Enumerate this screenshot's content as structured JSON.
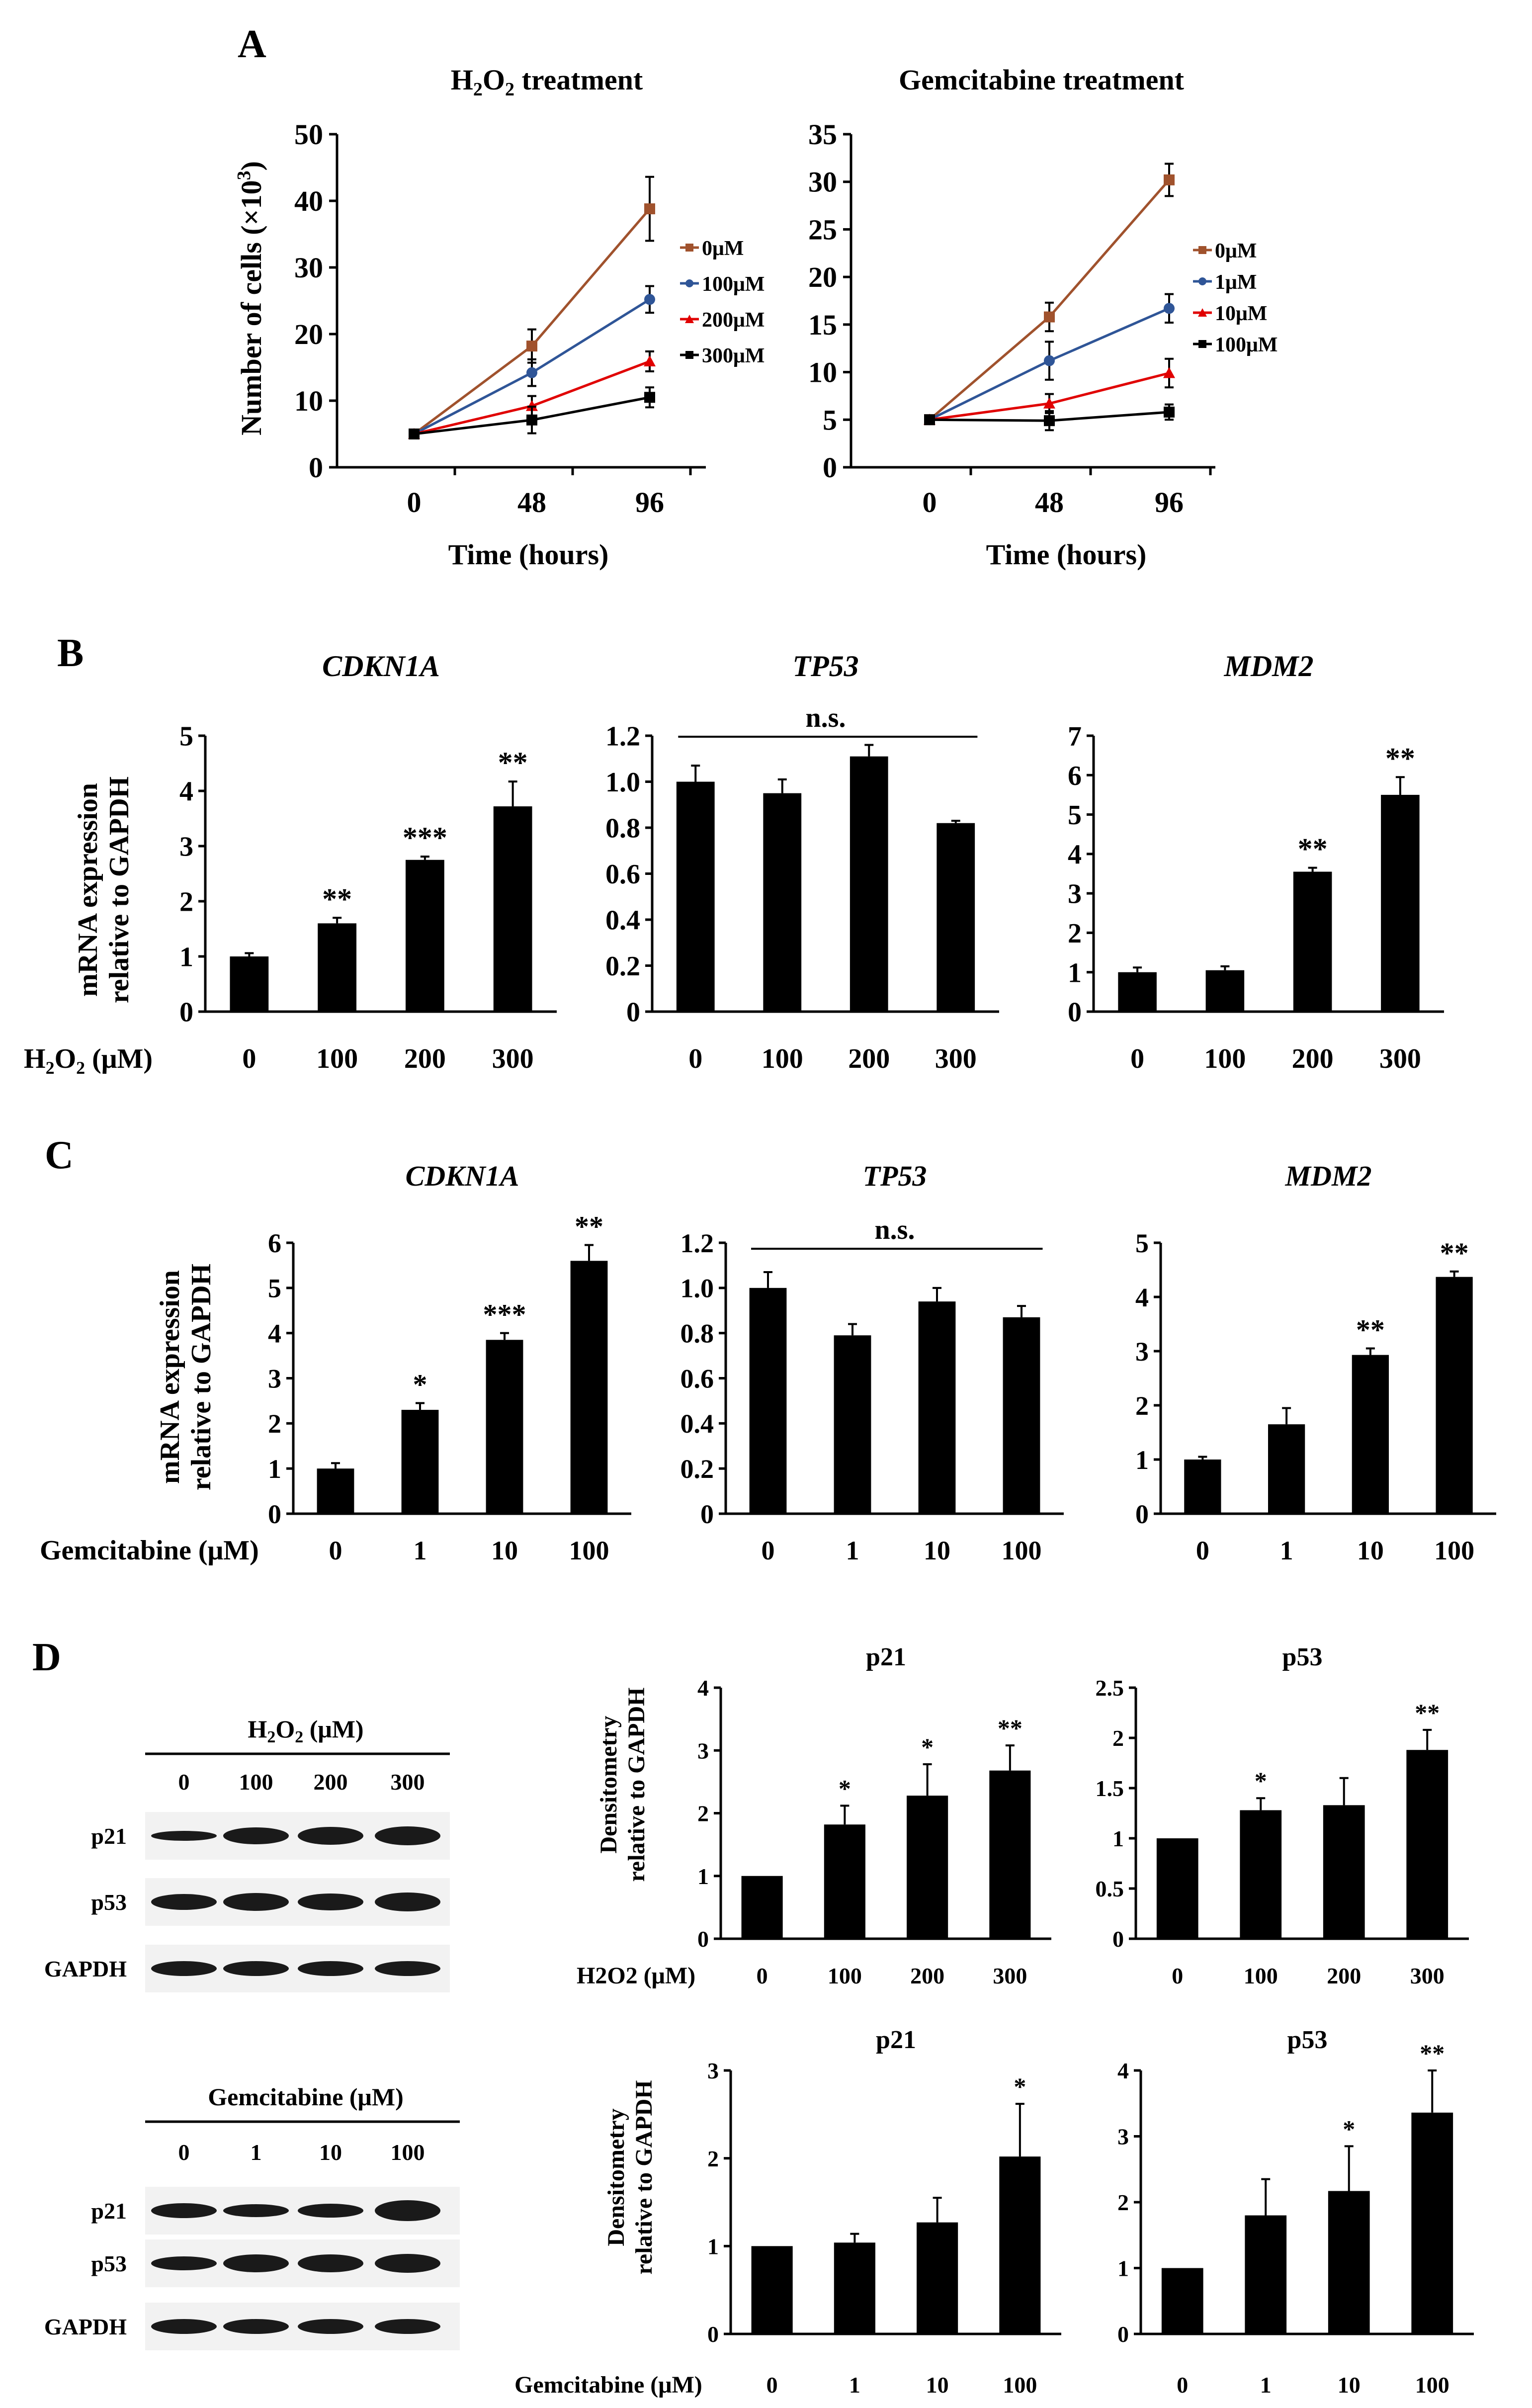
{
  "colors": {
    "axis": "#000000",
    "bar": "#000000",
    "brown": "#A0522D",
    "blue": "#2F5597",
    "red": "#E00000",
    "black": "#000000",
    "blot_band": "#1a1a1a",
    "blot_bg": "#f2f2f2"
  },
  "panel_a": {
    "letter": "A",
    "left": {
      "title_main": "H",
      "title_sub1": "2",
      "title_mid": "O",
      "title_sub2": "2",
      "title_rest": " treatment",
      "ylabel_main": "Number of cells (×10",
      "ylabel_sup": "3",
      "ylabel_end": ")",
      "xlabel": "Time (hours)"
    },
    "right": {
      "title": "Gemcitabine treatment",
      "xlabel": "Time (hours)"
    }
  },
  "panel_b": {
    "letter": "B",
    "ylabel_line1": "mRNA expression",
    "ylabel_line2": "relative to GAPDH",
    "x_prefix_main": "H",
    "x_prefix_sub1": "2",
    "x_prefix_mid": "O",
    "x_prefix_sub2": "2",
    "x_prefix_rest": " (μM)",
    "ns_label": "n.s."
  },
  "panel_c": {
    "letter": "C",
    "ylabel_line1": "mRNA expression",
    "ylabel_line2": "relative to GAPDH",
    "x_prefix": "Gemcitabine (μM)",
    "ns_label": "n.s."
  },
  "panel_d": {
    "letter": "D",
    "ylabel_line1": "Densitometry",
    "ylabel_line2": "relative to GAPDH",
    "x_prefix_top": "H2O2 (μM)",
    "x_prefix_bottom": "Gemcitabine (μM)",
    "blot_top": {
      "header_main": "H",
      "header_sub1": "2",
      "header_mid": "O",
      "header_sub2": "2",
      "header_rest": " (μM)",
      "lanes": [
        "0",
        "100",
        "200",
        "300"
      ],
      "rows": [
        "p21",
        "p53",
        "GAPDH"
      ]
    },
    "blot_bottom": {
      "header": "Gemcitabine (μM)",
      "lanes": [
        "0",
        "1",
        "10",
        "100"
      ],
      "rows": [
        "p21",
        "p53",
        "GAPDH"
      ]
    }
  },
  "chart_data": [
    {
      "id": "A1",
      "type": "line",
      "title": "H2O2 treatment",
      "xlabel": "Time (hours)",
      "ylabel": "Number of cells (×10³)",
      "x": [
        0,
        48,
        96
      ],
      "ylim": [
        0,
        50
      ],
      "yticks": [
        0,
        10,
        20,
        30,
        40,
        50
      ],
      "legend_position": "right",
      "series": [
        {
          "name": "0μM",
          "color": "#A0522D",
          "marker": "square",
          "values": [
            5,
            18.2,
            38.8
          ],
          "errors": [
            0.3,
            2.5,
            4.8
          ]
        },
        {
          "name": "100μM",
          "color": "#2F5597",
          "marker": "circle",
          "values": [
            5,
            14.2,
            25.2
          ],
          "errors": [
            0.3,
            2.0,
            2.0
          ]
        },
        {
          "name": "200μM",
          "color": "#E00000",
          "marker": "triangle",
          "values": [
            5,
            9.2,
            15.9
          ],
          "errors": [
            0.3,
            1.5,
            1.5
          ]
        },
        {
          "name": "300μM",
          "color": "#000000",
          "marker": "square",
          "values": [
            5,
            7.1,
            10.5
          ],
          "errors": [
            0.3,
            2.0,
            1.5
          ]
        }
      ]
    },
    {
      "id": "A2",
      "type": "line",
      "title": "Gemcitabine treatment",
      "xlabel": "Time (hours)",
      "ylabel": "",
      "x": [
        0,
        48,
        96
      ],
      "ylim": [
        0,
        35
      ],
      "yticks": [
        0,
        5,
        10,
        15,
        20,
        25,
        30,
        35
      ],
      "legend_position": "right",
      "series": [
        {
          "name": "0μM",
          "color": "#A0522D",
          "marker": "square",
          "values": [
            5,
            15.8,
            30.2
          ],
          "errors": [
            0.3,
            1.5,
            1.7
          ]
        },
        {
          "name": "1μM",
          "color": "#2F5597",
          "marker": "circle",
          "values": [
            5,
            11.2,
            16.7
          ],
          "errors": [
            0.3,
            2.0,
            1.5
          ]
        },
        {
          "name": "10μM",
          "color": "#E00000",
          "marker": "triangle",
          "values": [
            5,
            6.7,
            9.9
          ],
          "errors": [
            0.3,
            1.0,
            1.5
          ]
        },
        {
          "name": "100μM",
          "color": "#000000",
          "marker": "square",
          "values": [
            5,
            4.9,
            5.8
          ],
          "errors": [
            0.3,
            1.0,
            0.8
          ]
        }
      ]
    },
    {
      "id": "B1",
      "type": "bar",
      "title": "CDKN1A",
      "title_italic": true,
      "categories": [
        "0",
        "100",
        "200",
        "300"
      ],
      "values": [
        1.0,
        1.6,
        2.75,
        3.72
      ],
      "errors": [
        0.06,
        0.1,
        0.06,
        0.45
      ],
      "sig": [
        "",
        "**",
        "***",
        "**"
      ],
      "ylim": [
        0,
        5
      ],
      "yticks": [
        "0",
        "1",
        "2",
        "3",
        "4",
        "5"
      ]
    },
    {
      "id": "B2",
      "type": "bar",
      "title": "TP53",
      "title_italic": true,
      "categories": [
        "0",
        "100",
        "200",
        "300"
      ],
      "values": [
        1.0,
        0.95,
        1.11,
        0.82
      ],
      "errors": [
        0.07,
        0.06,
        0.05,
        0.01
      ],
      "sig": [
        "",
        "",
        "",
        ""
      ],
      "ns": true,
      "ylim": [
        0,
        1.2
      ],
      "yticks": [
        "0",
        "0.2",
        "0.4",
        "0.6",
        "0.8",
        "1.0",
        "1.2"
      ]
    },
    {
      "id": "B3",
      "type": "bar",
      "title": "MDM2",
      "title_italic": true,
      "categories": [
        "0",
        "100",
        "200",
        "300"
      ],
      "values": [
        1.0,
        1.05,
        3.55,
        5.5
      ],
      "errors": [
        0.12,
        0.1,
        0.1,
        0.45
      ],
      "sig": [
        "",
        "",
        "**",
        "**"
      ],
      "ylim": [
        0,
        7
      ],
      "yticks": [
        "0",
        "1",
        "2",
        "3",
        "4",
        "5",
        "6",
        "7"
      ]
    },
    {
      "id": "C1",
      "type": "bar",
      "title": "CDKN1A",
      "title_italic": true,
      "categories": [
        "0",
        "1",
        "10",
        "100"
      ],
      "values": [
        1.0,
        2.3,
        3.85,
        5.6
      ],
      "errors": [
        0.12,
        0.15,
        0.15,
        0.35
      ],
      "sig": [
        "",
        "*",
        "***",
        "**"
      ],
      "ylim": [
        0,
        6
      ],
      "yticks": [
        "0",
        "1",
        "2",
        "3",
        "4",
        "5",
        "6"
      ]
    },
    {
      "id": "C2",
      "type": "bar",
      "title": "TP53",
      "title_italic": true,
      "categories": [
        "0",
        "1",
        "10",
        "100"
      ],
      "values": [
        1.0,
        0.79,
        0.94,
        0.87
      ],
      "errors": [
        0.07,
        0.05,
        0.06,
        0.05
      ],
      "sig": [
        "",
        "",
        "",
        ""
      ],
      "ns": true,
      "ylim": [
        0,
        1.2
      ],
      "yticks": [
        "0",
        "0.2",
        "0.4",
        "0.6",
        "0.8",
        "1.0",
        "1.2"
      ]
    },
    {
      "id": "C3",
      "type": "bar",
      "title": "MDM2",
      "title_italic": true,
      "categories": [
        "0",
        "1",
        "10",
        "100"
      ],
      "values": [
        1.0,
        1.65,
        2.93,
        4.37
      ],
      "errors": [
        0.05,
        0.3,
        0.12,
        0.1
      ],
      "sig": [
        "",
        "",
        "**",
        "**"
      ],
      "ylim": [
        0,
        5
      ],
      "yticks": [
        "0",
        "1",
        "2",
        "3",
        "4",
        "5"
      ]
    },
    {
      "id": "D1",
      "type": "bar",
      "title": "p21",
      "title_italic": false,
      "categories": [
        "0",
        "100",
        "200",
        "300"
      ],
      "values": [
        1.0,
        1.82,
        2.28,
        2.68
      ],
      "errors": [
        0.0,
        0.3,
        0.5,
        0.4
      ],
      "sig": [
        "",
        "*",
        "*",
        "**"
      ],
      "ylim": [
        0,
        4
      ],
      "yticks": [
        "0",
        "1",
        "2",
        "3",
        "4"
      ]
    },
    {
      "id": "D2",
      "type": "bar",
      "title": "p53",
      "title_italic": false,
      "categories": [
        "0",
        "100",
        "200",
        "300"
      ],
      "values": [
        1.0,
        1.28,
        1.33,
        1.88
      ],
      "errors": [
        0.0,
        0.12,
        0.27,
        0.2
      ],
      "sig": [
        "",
        "*",
        "",
        "**"
      ],
      "ylim": [
        0,
        2.5
      ],
      "yticks": [
        "0",
        "0.5",
        "1",
        "1.5",
        "2",
        "2.5"
      ]
    },
    {
      "id": "D3",
      "type": "bar",
      "title": "p21",
      "title_italic": false,
      "categories": [
        "0",
        "1",
        "10",
        "100"
      ],
      "values": [
        1.0,
        1.04,
        1.27,
        2.02
      ],
      "errors": [
        0.0,
        0.1,
        0.28,
        0.6
      ],
      "sig": [
        "",
        "",
        "",
        "*"
      ],
      "ylim": [
        0,
        3
      ],
      "yticks": [
        "0",
        "1",
        "2",
        "3"
      ]
    },
    {
      "id": "D4",
      "type": "bar",
      "title": "p53",
      "title_italic": false,
      "categories": [
        "0",
        "1",
        "10",
        "100"
      ],
      "values": [
        1.0,
        1.8,
        2.17,
        3.36
      ],
      "errors": [
        0.0,
        0.55,
        0.68,
        0.64
      ],
      "sig": [
        "",
        "",
        "*",
        "**"
      ],
      "ylim": [
        0,
        4
      ],
      "yticks": [
        "0",
        "1",
        "2",
        "3",
        "4"
      ]
    }
  ]
}
